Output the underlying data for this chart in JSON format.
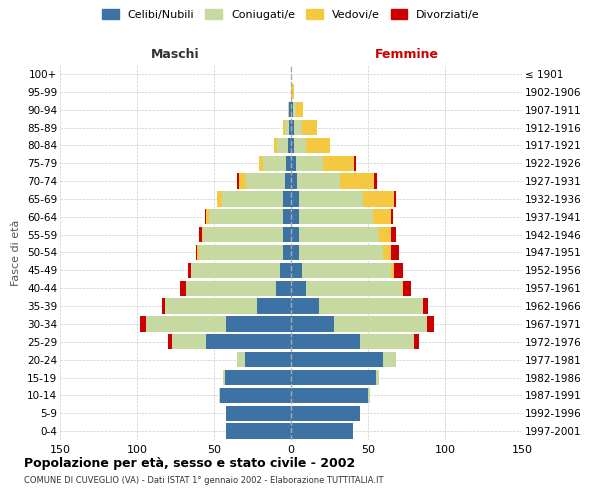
{
  "age_groups": [
    "0-4",
    "5-9",
    "10-14",
    "15-19",
    "20-24",
    "25-29",
    "30-34",
    "35-39",
    "40-44",
    "45-49",
    "50-54",
    "55-59",
    "60-64",
    "65-69",
    "70-74",
    "75-79",
    "80-84",
    "85-89",
    "90-94",
    "95-99",
    "100+"
  ],
  "birth_years": [
    "1997-2001",
    "1992-1996",
    "1987-1991",
    "1982-1986",
    "1977-1981",
    "1972-1976",
    "1967-1971",
    "1962-1966",
    "1957-1961",
    "1952-1956",
    "1947-1951",
    "1942-1946",
    "1937-1941",
    "1932-1936",
    "1927-1931",
    "1922-1926",
    "1917-1921",
    "1912-1916",
    "1907-1911",
    "1902-1906",
    "≤ 1901"
  ],
  "maschi_celibi": [
    42,
    42,
    46,
    43,
    30,
    55,
    42,
    22,
    10,
    7,
    5,
    5,
    5,
    5,
    4,
    3,
    2,
    1,
    1,
    0,
    0
  ],
  "maschi_coniugati": [
    0,
    0,
    1,
    1,
    5,
    22,
    52,
    60,
    58,
    58,
    55,
    52,
    48,
    40,
    25,
    15,
    7,
    3,
    1,
    0,
    0
  ],
  "maschi_vedovi": [
    0,
    0,
    0,
    0,
    0,
    0,
    0,
    0,
    0,
    0,
    1,
    1,
    2,
    3,
    5,
    3,
    2,
    1,
    0,
    0,
    0
  ],
  "maschi_divorziati": [
    0,
    0,
    0,
    0,
    0,
    3,
    4,
    2,
    4,
    2,
    1,
    2,
    1,
    0,
    1,
    0,
    0,
    0,
    0,
    0,
    0
  ],
  "femmine_celibi": [
    40,
    45,
    50,
    55,
    60,
    45,
    28,
    18,
    10,
    7,
    5,
    5,
    5,
    5,
    4,
    3,
    2,
    2,
    1,
    0,
    0
  ],
  "femmine_coniugati": [
    0,
    0,
    1,
    2,
    8,
    35,
    60,
    68,
    62,
    58,
    55,
    52,
    48,
    42,
    28,
    18,
    8,
    5,
    2,
    0,
    0
  ],
  "femmine_vedovi": [
    0,
    0,
    0,
    0,
    0,
    0,
    0,
    0,
    1,
    2,
    5,
    8,
    12,
    20,
    22,
    20,
    15,
    10,
    5,
    2,
    0
  ],
  "femmine_divorziati": [
    0,
    0,
    0,
    0,
    0,
    3,
    5,
    3,
    5,
    6,
    5,
    3,
    1,
    1,
    2,
    1,
    0,
    0,
    0,
    0,
    0
  ],
  "color_celibi": "#3d72a4",
  "color_coniugati": "#c5d9a0",
  "color_vedovi": "#f5c842",
  "color_divorziati": "#cc0000",
  "title": "Popolazione per età, sesso e stato civile - 2002",
  "subtitle": "COMUNE DI CUVEGLIO (VA) - Dati ISTAT 1° gennaio 2002 - Elaborazione TUTTITALIA.IT",
  "ylabel_left": "Fasce di età",
  "xlabel_left": "Maschi",
  "xlabel_right": "Femmine",
  "xlim": 150,
  "background_color": "#ffffff",
  "grid_color": "#cccccc"
}
